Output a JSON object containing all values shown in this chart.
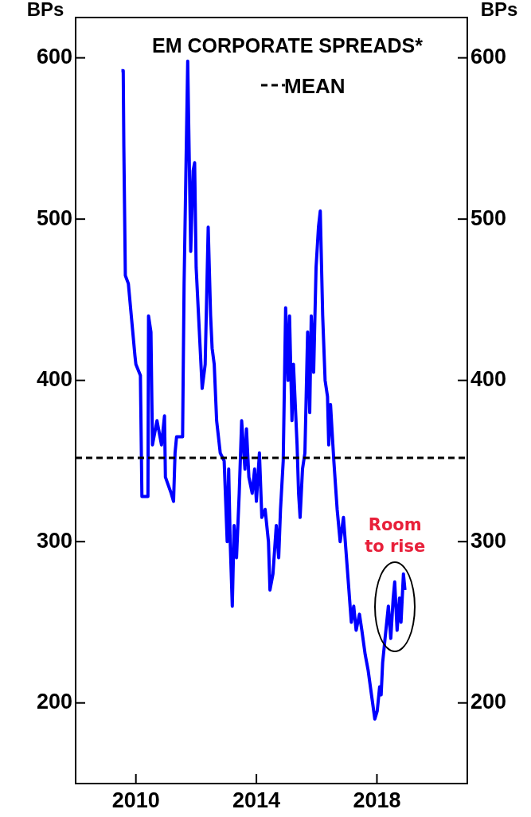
{
  "chart_data": {
    "type": "line",
    "title": "EM CORPORATE SPREADS*",
    "ylabel": "BPs",
    "y2label": "BPs",
    "x": [
      2009.52,
      2009.58,
      2009.6,
      2009.65,
      2009.75,
      2009.97,
      2010.0,
      2010.15,
      2010.2,
      2010.4,
      2010.42,
      2010.5,
      2010.55,
      2010.7,
      2010.85,
      2010.95,
      2010.98,
      2011.17,
      2011.25,
      2011.3,
      2011.35,
      2011.55,
      2011.6,
      2011.72,
      2011.82,
      2011.9,
      2011.95,
      2012.0,
      2012.2,
      2012.3,
      2012.4,
      2012.48,
      2012.53,
      2012.6,
      2012.68,
      2012.8,
      2012.93,
      2013.03,
      2013.08,
      2013.13,
      2013.2,
      2013.26,
      2013.34,
      2013.43,
      2013.51,
      2013.62,
      2013.67,
      2013.75,
      2013.86,
      2013.94,
      2014.0,
      2014.1,
      2014.18,
      2014.29,
      2014.4,
      2014.45,
      2014.55,
      2014.66,
      2014.74,
      2014.8,
      2014.89,
      2014.97,
      2015.05,
      2015.1,
      2015.18,
      2015.23,
      2015.35,
      2015.4,
      2015.45,
      2015.53,
      2015.61,
      2015.7,
      2015.77,
      2015.82,
      2015.9,
      2015.98,
      2016.06,
      2016.12,
      2016.2,
      2016.28,
      2016.36,
      2016.4,
      2016.46,
      2016.57,
      2016.68,
      2016.78,
      2016.89,
      2016.97,
      2017.07,
      2017.15,
      2017.23,
      2017.31,
      2017.42,
      2017.5,
      2017.61,
      2017.71,
      2017.82,
      2017.93,
      2018.01,
      2018.09,
      2018.14,
      2018.19,
      2018.27,
      2018.38,
      2018.46,
      2018.54,
      2018.59,
      2018.67,
      2018.75,
      2018.8,
      2018.88,
      2018.93
    ],
    "series": [
      {
        "color": "#0000ff",
        "values": [
          592,
          592,
          545,
          465,
          460,
          415,
          410,
          403,
          328,
          328,
          440,
          430,
          360,
          375,
          360,
          378,
          340,
          330,
          325,
          355,
          365,
          365,
          460,
          598,
          480,
          530,
          535,
          470,
          395,
          410,
          495,
          440,
          420,
          410,
          375,
          355,
          350,
          300,
          345,
          300,
          260,
          310,
          290,
          330,
          375,
          345,
          370,
          340,
          330,
          345,
          325,
          355,
          315,
          320,
          300,
          270,
          280,
          310,
          290,
          320,
          350,
          445,
          400,
          440,
          375,
          410,
          360,
          330,
          315,
          345,
          355,
          430,
          380,
          440,
          405,
          470,
          495,
          505,
          440,
          400,
          390,
          360,
          385,
          350,
          320,
          300,
          315,
          295,
          270,
          250,
          260,
          245,
          255,
          245,
          230,
          220,
          205,
          190,
          195,
          210,
          205,
          225,
          240,
          260,
          240,
          265,
          275,
          245,
          265,
          250,
          280,
          270
        ]
      }
    ],
    "xlim": [
      2008,
      2021
    ],
    "xticks": [
      2010,
      2014,
      2018
    ],
    "ylim": [
      150,
      625
    ],
    "yticks": [
      200,
      300,
      400,
      500,
      600
    ],
    "y2lim": [
      150,
      625
    ],
    "y2ticks": [
      200,
      300,
      400,
      500,
      600
    ],
    "ref_lines": [
      {
        "axis": "y",
        "value": 352,
        "label": "MEAN",
        "color": "#000000",
        "line_style": "dashed"
      }
    ],
    "annotations": [
      "Room to rise"
    ],
    "grid": false,
    "marker": "none",
    "line_style": "solid"
  }
}
